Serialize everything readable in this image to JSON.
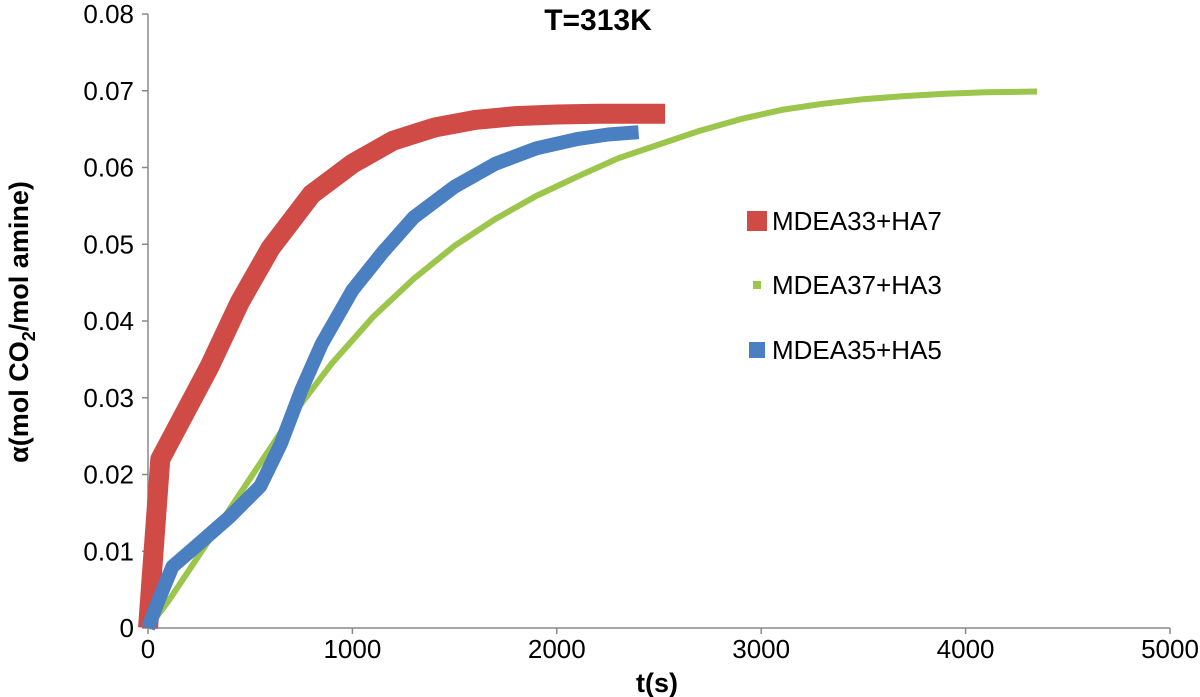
{
  "chart_data": {
    "type": "line",
    "title": "T=313K",
    "xlabel": "t(s)",
    "ylabel_parts": [
      "α(mol CO",
      "2",
      "/mol amine)"
    ],
    "xlim": [
      0,
      5000
    ],
    "ylim": [
      0,
      0.08
    ],
    "x_ticks": [
      0,
      1000,
      2000,
      3000,
      4000,
      5000
    ],
    "y_ticks": [
      0,
      0.01,
      0.02,
      0.03,
      0.04,
      0.05,
      0.06,
      0.07,
      0.08
    ],
    "x_tick_labels": [
      "0",
      "1000",
      "2000",
      "3000",
      "4000",
      "5000"
    ],
    "y_tick_labels": [
      "0",
      "0.01",
      "0.02",
      "0.03",
      "0.04",
      "0.05",
      "0.06",
      "0.07",
      "0.08"
    ],
    "grid": false,
    "legend_position": "right",
    "series": [
      {
        "name": "MDEA33+HA7",
        "color": "#d04a46",
        "x": [
          0,
          60,
          150,
          300,
          450,
          600,
          800,
          1000,
          1200,
          1400,
          1600,
          1800,
          2000,
          2200,
          2400,
          2530
        ],
        "y": [
          0,
          0.022,
          0.0265,
          0.034,
          0.0425,
          0.0495,
          0.0565,
          0.0605,
          0.0635,
          0.0652,
          0.0662,
          0.0667,
          0.0669,
          0.067,
          0.067,
          0.067
        ]
      },
      {
        "name": "MDEA37+HA3",
        "color": "#9bc54b",
        "x": [
          0,
          100,
          200,
          350,
          500,
          700,
          900,
          1100,
          1300,
          1500,
          1700,
          1900,
          2100,
          2300,
          2500,
          2700,
          2900,
          3100,
          3300,
          3500,
          3700,
          3900,
          4100,
          4350
        ],
        "y": [
          0,
          0.0035,
          0.0075,
          0.0135,
          0.0195,
          0.0275,
          0.0345,
          0.0405,
          0.0455,
          0.0498,
          0.0533,
          0.0563,
          0.0588,
          0.0612,
          0.063,
          0.0648,
          0.0663,
          0.0675,
          0.0683,
          0.0689,
          0.0693,
          0.0696,
          0.0698,
          0.0699
        ]
      },
      {
        "name": "MDEA35+HA5",
        "color": "#4a7fc1",
        "x": [
          0,
          50,
          120,
          250,
          400,
          550,
          650,
          750,
          850,
          1000,
          1150,
          1300,
          1500,
          1700,
          1900,
          2100,
          2250,
          2400
        ],
        "y": [
          0,
          0.0035,
          0.008,
          0.011,
          0.0145,
          0.0185,
          0.024,
          0.031,
          0.037,
          0.044,
          0.049,
          0.0535,
          0.0575,
          0.0605,
          0.0625,
          0.0637,
          0.0643,
          0.0646
        ]
      }
    ]
  }
}
